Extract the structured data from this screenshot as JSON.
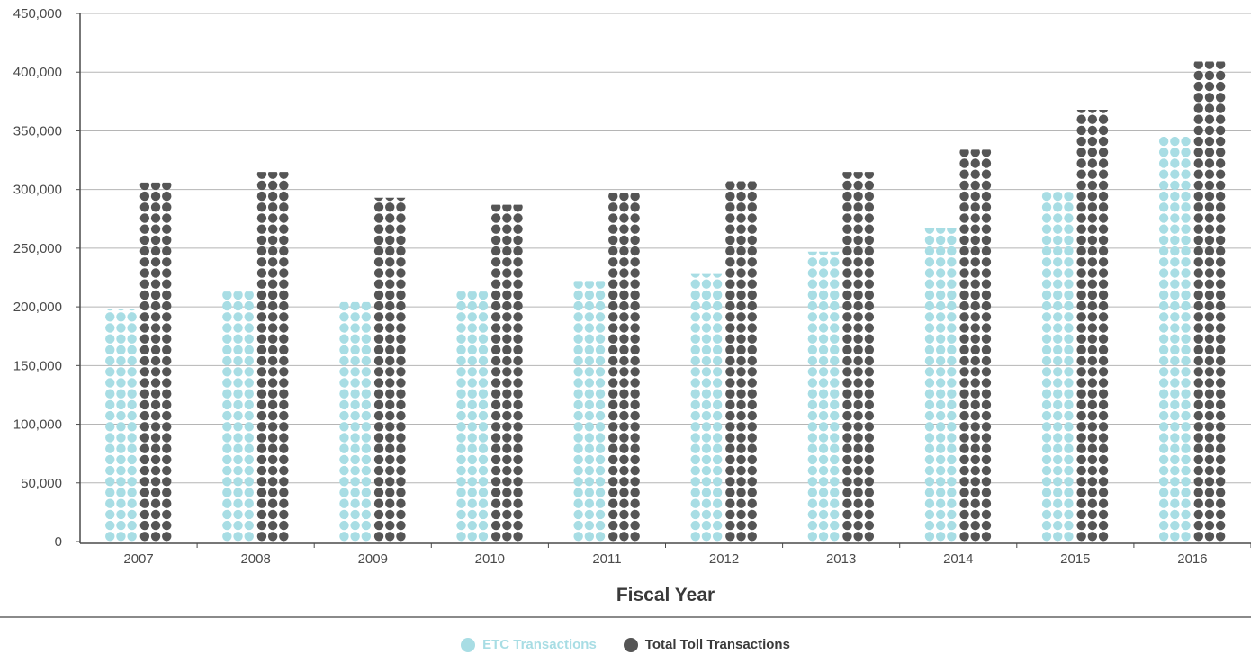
{
  "chart_data": {
    "type": "bar",
    "title": "",
    "xlabel": "Fiscal Year",
    "ylabel": "",
    "categories": [
      "2007",
      "2008",
      "2009",
      "2010",
      "2011",
      "2012",
      "2013",
      "2014",
      "2015",
      "2016"
    ],
    "series": [
      {
        "name": "ETC Transactions",
        "color": "#a8dde4",
        "values": [
          198000,
          213000,
          204000,
          213000,
          222000,
          228000,
          247000,
          267000,
          298000,
          345000
        ]
      },
      {
        "name": "Total Toll Transactions",
        "color": "#555555",
        "values": [
          306000,
          315000,
          293000,
          287000,
          297000,
          307000,
          315000,
          334000,
          368000,
          409000
        ]
      }
    ],
    "ylim": [
      0,
      450000
    ],
    "yticks": [
      "0",
      "50,000",
      "100,000",
      "150,000",
      "200,000",
      "250,000",
      "300,000",
      "350,000",
      "400,000",
      "450,000"
    ],
    "ytick_values": [
      0,
      50000,
      100000,
      150000,
      200000,
      250000,
      300000,
      350000,
      400000,
      450000
    ],
    "grid": true,
    "legend_position": "bottom-center",
    "mark_style": "dot-stacked-columns"
  }
}
